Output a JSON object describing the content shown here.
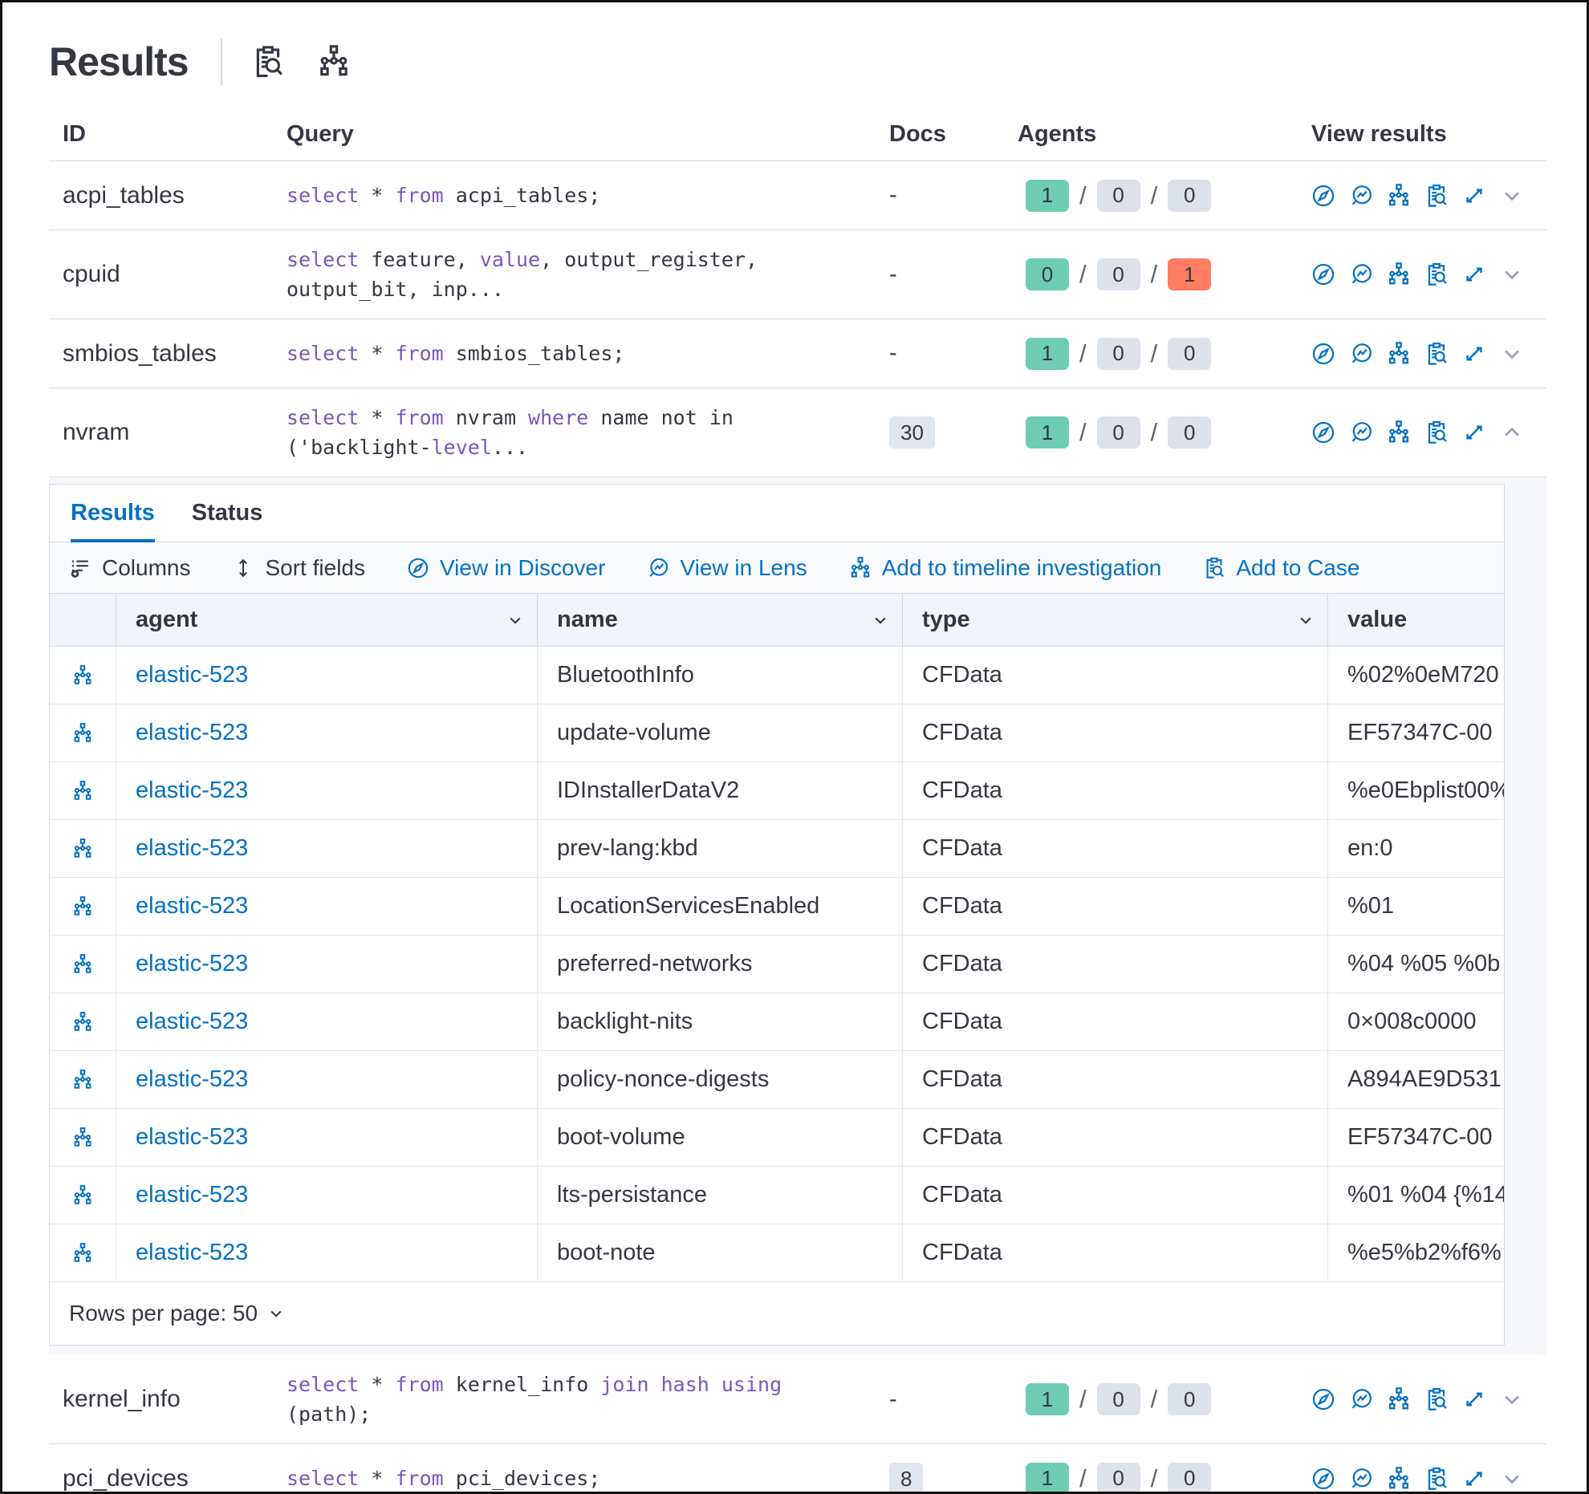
{
  "colors": {
    "primary_blue": "#0071c2",
    "text": "#343741",
    "sql_keyword": "#7957b8",
    "badge_green": "#6dccb1",
    "badge_gray": "#dde1ea",
    "badge_red": "#ff7e62",
    "docs_badge_bg": "#e0e5ee"
  },
  "header": {
    "title": "Results",
    "action_icons": [
      "clipboard-search-icon",
      "sitemap-icon"
    ]
  },
  "results_table": {
    "columns": [
      "ID",
      "Query",
      "Docs",
      "Agents",
      "View results"
    ],
    "view_result_icons": [
      "compass-icon",
      "lens-icon",
      "sitemap-icon",
      "clipboard-search-icon",
      "expand-icon"
    ],
    "rows": [
      {
        "id": "acpi_tables",
        "query": [
          {
            "t": "select",
            "kw": true
          },
          {
            "t": " * "
          },
          {
            "t": "from",
            "kw": true
          },
          {
            "t": " acpi_tables;"
          }
        ],
        "docs": "-",
        "docs_is_badge": false,
        "agents": [
          {
            "count": "1",
            "color": "green"
          },
          {
            "count": "0",
            "color": "gray"
          },
          {
            "count": "0",
            "color": "gray"
          }
        ],
        "expanded": false
      },
      {
        "id": "cpuid",
        "query": [
          {
            "t": "select",
            "kw": true
          },
          {
            "t": " feature, "
          },
          {
            "t": "value",
            "kw": true
          },
          {
            "t": ", output_register, output_bit, inp..."
          }
        ],
        "docs": "-",
        "docs_is_badge": false,
        "agents": [
          {
            "count": "0",
            "color": "green"
          },
          {
            "count": "0",
            "color": "gray"
          },
          {
            "count": "1",
            "color": "red"
          }
        ],
        "expanded": false
      },
      {
        "id": "smbios_tables",
        "query": [
          {
            "t": "select",
            "kw": true
          },
          {
            "t": " * "
          },
          {
            "t": "from",
            "kw": true
          },
          {
            "t": " smbios_tables;"
          }
        ],
        "docs": "-",
        "docs_is_badge": false,
        "agents": [
          {
            "count": "1",
            "color": "green"
          },
          {
            "count": "0",
            "color": "gray"
          },
          {
            "count": "0",
            "color": "gray"
          }
        ],
        "expanded": false
      },
      {
        "id": "nvram",
        "query": [
          {
            "t": "select",
            "kw": true
          },
          {
            "t": " * "
          },
          {
            "t": "from",
            "kw": true
          },
          {
            "t": " nvram "
          },
          {
            "t": "where",
            "kw": true
          },
          {
            "t": " name not in ('backlight-"
          },
          {
            "t": "level",
            "kw": true
          },
          {
            "t": "..."
          }
        ],
        "docs": "30",
        "docs_is_badge": true,
        "agents": [
          {
            "count": "1",
            "color": "green"
          },
          {
            "count": "0",
            "color": "gray"
          },
          {
            "count": "0",
            "color": "gray"
          }
        ],
        "expanded": true
      },
      {
        "id": "kernel_info",
        "query": [
          {
            "t": "select",
            "kw": true
          },
          {
            "t": " * "
          },
          {
            "t": "from",
            "kw": true
          },
          {
            "t": " kernel_info "
          },
          {
            "t": "join hash using",
            "kw": true
          },
          {
            "t": " (path);"
          }
        ],
        "docs": "-",
        "docs_is_badge": false,
        "agents": [
          {
            "count": "1",
            "color": "green"
          },
          {
            "count": "0",
            "color": "gray"
          },
          {
            "count": "0",
            "color": "gray"
          }
        ],
        "expanded": false
      },
      {
        "id": "pci_devices",
        "query": [
          {
            "t": "select",
            "kw": true
          },
          {
            "t": " * "
          },
          {
            "t": "from",
            "kw": true
          },
          {
            "t": " pci_devices;"
          }
        ],
        "docs": "8",
        "docs_is_badge": true,
        "agents": [
          {
            "count": "1",
            "color": "green"
          },
          {
            "count": "0",
            "color": "gray"
          },
          {
            "count": "0",
            "color": "gray"
          }
        ],
        "expanded": false
      }
    ]
  },
  "panel": {
    "tabs": [
      {
        "label": "Results",
        "active": true
      },
      {
        "label": "Status",
        "active": false
      }
    ],
    "toolbar": [
      {
        "label": "Columns",
        "icon": "columns-icon",
        "style": "dark"
      },
      {
        "label": "Sort fields",
        "icon": "sort-icon",
        "style": "dark"
      },
      {
        "label": "View in Discover",
        "icon": "compass-icon",
        "style": "primary"
      },
      {
        "label": "View in Lens",
        "icon": "lens-icon",
        "style": "primary"
      },
      {
        "label": "Add to timeline investigation",
        "icon": "sitemap-icon",
        "style": "primary"
      },
      {
        "label": "Add to Case",
        "icon": "clipboard-search-icon",
        "style": "primary"
      }
    ],
    "grid": {
      "columns": [
        {
          "label": "agent",
          "sortable": true
        },
        {
          "label": "name",
          "sortable": true
        },
        {
          "label": "type",
          "sortable": true
        },
        {
          "label": "value",
          "sortable": false
        }
      ],
      "row_icon": "sitemap-icon",
      "rows": [
        {
          "agent": "elastic-523",
          "name": "BluetoothInfo",
          "type": "CFData",
          "value": "%02%0eM720"
        },
        {
          "agent": "elastic-523",
          "name": "update-volume",
          "type": "CFData",
          "value": "EF57347C-00"
        },
        {
          "agent": "elastic-523",
          "name": "IDInstallerDataV2",
          "type": "CFData",
          "value": "%e0Ebplist00%"
        },
        {
          "agent": "elastic-523",
          "name": "prev-lang:kbd",
          "type": "CFData",
          "value": "en:0"
        },
        {
          "agent": "elastic-523",
          "name": "LocationServicesEnabled",
          "type": "CFData",
          "value": "%01"
        },
        {
          "agent": "elastic-523",
          "name": "preferred-networks",
          "type": "CFData",
          "value": "%04 %05 %0b"
        },
        {
          "agent": "elastic-523",
          "name": "backlight-nits",
          "type": "CFData",
          "value": "0×008c0000"
        },
        {
          "agent": "elastic-523",
          "name": "policy-nonce-digests",
          "type": "CFData",
          "value": "A894AE9D531"
        },
        {
          "agent": "elastic-523",
          "name": "boot-volume",
          "type": "CFData",
          "value": "EF57347C-00"
        },
        {
          "agent": "elastic-523",
          "name": "lts-persistance",
          "type": "CFData",
          "value": "%01 %04 {%14"
        },
        {
          "agent": "elastic-523",
          "name": "boot-note",
          "type": "CFData",
          "value": "%e5%b2%f6%"
        }
      ]
    },
    "rows_per_page": {
      "label": "Rows per page: 50"
    }
  }
}
